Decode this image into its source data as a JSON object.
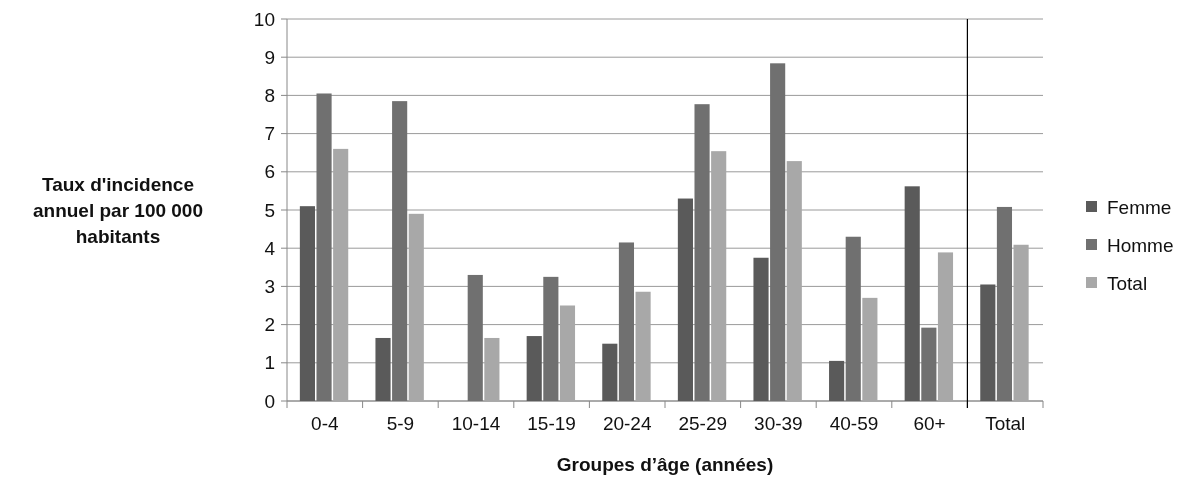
{
  "chart_data": {
    "type": "bar",
    "xlabel": "Groupes d’âge (années)",
    "ylabel": "Taux d'incidence annuel par 100 000 habitants",
    "categories": [
      "0-4",
      "5-9",
      "10-14",
      "15-19",
      "20-24",
      "25-29",
      "30-39",
      "40-59",
      "60+",
      "Total"
    ],
    "series": [
      {
        "name": "Femme",
        "color": "#5a5a5a",
        "values": [
          5.1,
          1.65,
          0,
          1.7,
          1.5,
          5.3,
          3.75,
          1.05,
          5.62,
          3.05
        ]
      },
      {
        "name": "Homme",
        "color": "#707070",
        "values": [
          8.05,
          7.85,
          3.3,
          3.25,
          4.15,
          7.77,
          8.84,
          4.3,
          1.92,
          5.08
        ]
      },
      {
        "name": "Total",
        "color": "#a8a8a8",
        "values": [
          6.6,
          4.9,
          1.65,
          2.5,
          2.86,
          6.54,
          6.28,
          2.7,
          3.89,
          4.09
        ]
      }
    ],
    "ylim": [
      0,
      10
    ],
    "yticks": [
      0,
      1,
      2,
      3,
      4,
      5,
      6,
      7,
      8,
      9,
      10
    ],
    "grid": "y",
    "legend": "right",
    "ref_lines": [
      {
        "axis": "x",
        "value": "Total",
        "color": "#000000"
      }
    ]
  }
}
